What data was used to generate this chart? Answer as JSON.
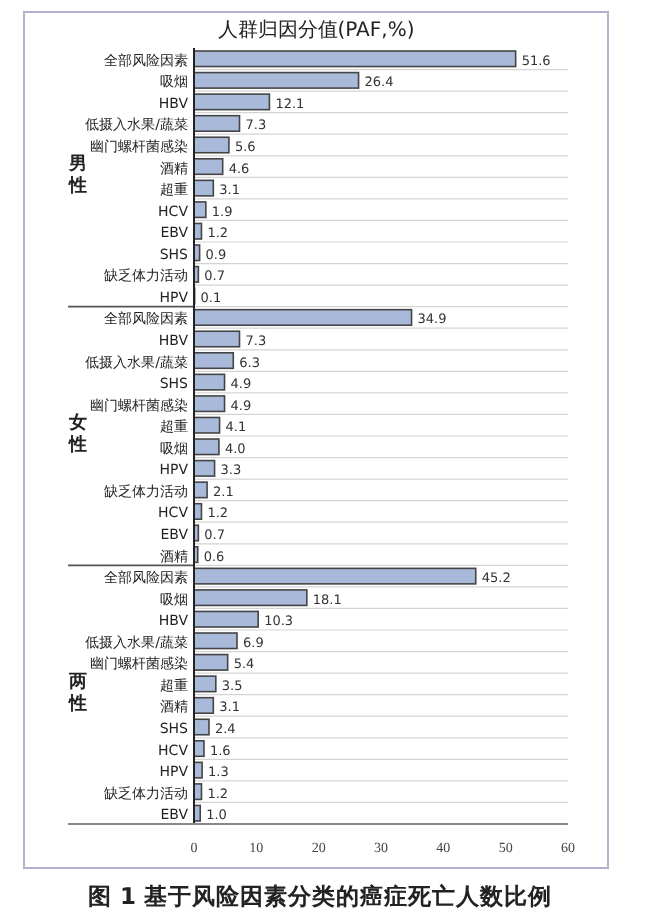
{
  "chart_data": {
    "type": "bar",
    "orientation": "horizontal",
    "title": "人群归因分值(PAF,%)",
    "categories": [
      "全部风险因素",
      "吸烟",
      "HBV",
      "低摄入水果/蔬菜",
      "幽门螺杆菌感染",
      "酒精",
      "超重",
      "HCV",
      "EBV",
      "SHS",
      "缺乏体力活动",
      "HPV",
      "全部风险因素",
      "HBV",
      "低摄入水果/蔬菜",
      "SHS",
      "幽门螺杆菌感染",
      "超重",
      "吸烟",
      "HPV",
      "缺乏体力活动",
      "HCV",
      "EBV",
      "酒精",
      "全部风险因素",
      "吸烟",
      "HBV",
      "低摄入水果/蔬菜",
      "幽门螺杆菌感染",
      "超重",
      "酒精",
      "SHS",
      "HCV",
      "HPV",
      "缺乏体力活动",
      "EBV"
    ],
    "values": [
      51.6,
      26.4,
      12.1,
      7.3,
      5.6,
      4.6,
      3.1,
      1.9,
      1.2,
      0.9,
      0.7,
      0.1,
      34.9,
      7.3,
      6.3,
      4.9,
      4.9,
      4.1,
      4.0,
      3.3,
      2.1,
      1.2,
      0.7,
      0.6,
      45.2,
      18.1,
      10.3,
      6.9,
      5.4,
      3.5,
      3.1,
      2.4,
      1.6,
      1.3,
      1.2,
      1.0
    ],
    "value_labels": [
      "51.6",
      "26.4",
      "12.1",
      "7.3",
      "5.6",
      "4.6",
      "3.1",
      "1.9",
      "1.2",
      "0.9",
      "0.7",
      "0.1",
      "34.9",
      "7.3",
      "6.3",
      "4.9",
      "4.9",
      "4.1",
      "4.0",
      "3.3",
      "2.1",
      "1.2",
      "0.7",
      "0.6",
      "45.2",
      "18.1",
      "10.3",
      "6.9",
      "5.4",
      "3.5",
      "3.1",
      "2.4",
      "1.6",
      "1.3",
      "1.2",
      "1.0"
    ],
    "color": "#a9b9da",
    "grid": "y",
    "xlim": [
      0,
      60
    ],
    "xticks": [
      0,
      10,
      20,
      30,
      40,
      50,
      60
    ],
    "annotations": [
      "男性",
      "女性",
      "两性",
      "图 1 基于风险因素分类的癌症死亡人数比例"
    ]
  }
}
